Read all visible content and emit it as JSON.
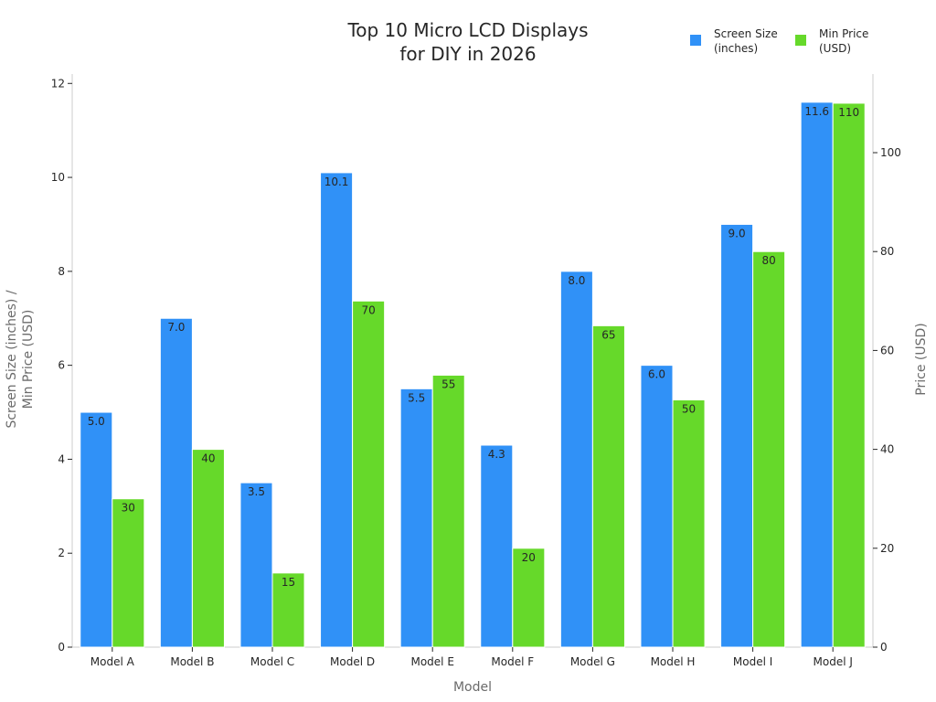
{
  "chart_data": {
    "type": "bar",
    "title": [
      "Top 10 Micro LCD Displays",
      "for DIY in 2026"
    ],
    "xlabel": "Model",
    "ylabel": [
      "Screen Size (inches) /",
      "Min Price (USD)"
    ],
    "y2label": "Price (USD)",
    "categories": [
      "Model A",
      "Model B",
      "Model C",
      "Model D",
      "Model E",
      "Model F",
      "Model G",
      "Model H",
      "Model I",
      "Model J"
    ],
    "series": [
      {
        "name": [
          "Screen Size",
          "(inches)"
        ],
        "axis": "left",
        "color": "#3091f7",
        "values": [
          5.0,
          7.0,
          3.5,
          10.1,
          5.5,
          4.3,
          8.0,
          6.0,
          9.0,
          11.6
        ],
        "labels": [
          "5.0",
          "7.0",
          "3.5",
          "10.1",
          "5.5",
          "4.3",
          "8.0",
          "6.0",
          "9.0",
          "11.6"
        ]
      },
      {
        "name": [
          "Min Price",
          "(USD)"
        ],
        "axis": "right",
        "color": "#66d92a",
        "values": [
          30,
          40,
          15,
          70,
          55,
          20,
          65,
          50,
          80,
          110
        ],
        "labels": [
          "30",
          "40",
          "15",
          "70",
          "55",
          "20",
          "65",
          "50",
          "80",
          "110"
        ]
      }
    ],
    "ylim": [
      0,
      12.2
    ],
    "yticks": [
      0,
      2,
      4,
      6,
      8,
      10,
      12
    ],
    "y2lim": [
      0,
      115.9
    ],
    "y2ticks": [
      0,
      20,
      40,
      60,
      80,
      100
    ],
    "legend_position": "top-right",
    "grid": false
  }
}
